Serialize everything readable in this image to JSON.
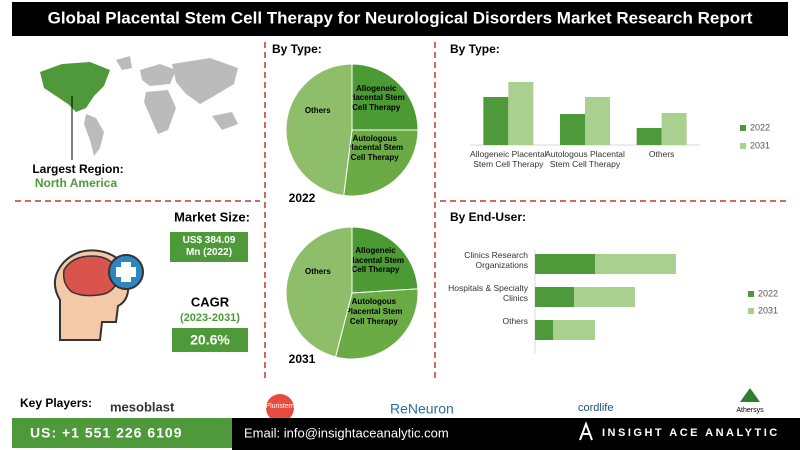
{
  "header": {
    "title": "Global Placental Stem Cell Therapy for Neurological Disorders Market Research Report"
  },
  "region": {
    "label": "Largest Region:",
    "value": "North America"
  },
  "market_size": {
    "label": "Market Size:",
    "value": "US$ 384.09 Mn (2022)"
  },
  "cagr": {
    "label": "CAGR",
    "period": "(2023-2031)",
    "value": "20.6%"
  },
  "key_players": {
    "label": "Key Players:",
    "names": [
      "mesoblast",
      "Pluristem",
      "ReNeuron",
      "cordlife",
      "Athersys"
    ]
  },
  "footer": {
    "phone": "US: +1 551 226 6109",
    "email": "Email: info@insightaceanalytic.com",
    "brand": "INSIGHT ACE ANALYTIC"
  },
  "chart_data": [
    {
      "type": "pie",
      "title": "By Type:",
      "subtitle": "2022",
      "categories": [
        "Allogeneic Placental Stem Cell Therapy",
        "Autologous Placental Stem Cell Therapy",
        "Others"
      ],
      "values": [
        25,
        27,
        48
      ],
      "colors": [
        "#4c9a33",
        "#6aab45",
        "#8fbe6b"
      ]
    },
    {
      "type": "pie",
      "subtitle": "2031",
      "categories": [
        "Allogeneic Placental Stem Cell Therapy",
        "Autologous Placental Stem Cell Therapy",
        "Others"
      ],
      "values": [
        24,
        30,
        46
      ],
      "colors": [
        "#4c9a33",
        "#6aab45",
        "#8fbe6b"
      ]
    },
    {
      "type": "bar",
      "title": "By Type:",
      "categories": [
        "Allogeneic Placental Stem Cell Therapy",
        "Autologous Placental Stem Cell Therapy",
        "Others"
      ],
      "ylim": [
        0,
        70
      ],
      "series": [
        {
          "name": "2022",
          "color": "#4e9a3a",
          "values": [
            48,
            31,
            17
          ]
        },
        {
          "name": "2031",
          "color": "#a9d08e",
          "values": [
            63,
            48,
            32
          ]
        }
      ]
    },
    {
      "type": "hbar_stacked",
      "title": "By End-User:",
      "categories": [
        "Clinics Research Organizations",
        "Hospitals & Specialty Clinics",
        "Others"
      ],
      "xlim": [
        0,
        160
      ],
      "series": [
        {
          "name": "2022",
          "color": "#4e9a3a",
          "values": [
            60,
            39,
            18
          ]
        },
        {
          "name": "2031",
          "color": "#a9d08e",
          "values": [
            81,
            61,
            42
          ]
        }
      ]
    }
  ]
}
